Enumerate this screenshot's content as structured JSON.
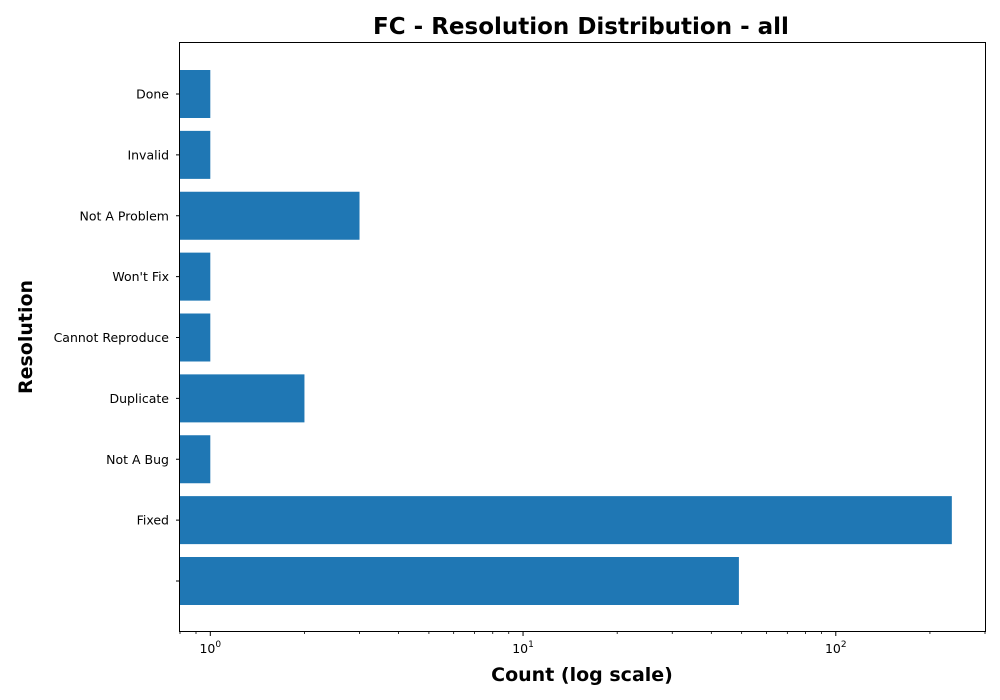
{
  "chart_data": {
    "type": "bar",
    "orientation": "horizontal",
    "title": "FC - Resolution Distribution - all",
    "xlabel": "Count (log scale)",
    "ylabel": "Resolution",
    "x_scale": "log",
    "xlim": [
      0.8,
      300
    ],
    "x_ticks": [
      {
        "value": 1,
        "base": "10",
        "exp": "0"
      },
      {
        "value": 10,
        "base": "10",
        "exp": "1"
      },
      {
        "value": 100,
        "base": "10",
        "exp": "2"
      }
    ],
    "categories": [
      "Done",
      "Invalid",
      "Not A Problem",
      "Won't Fix",
      "Cannot Reproduce",
      "Duplicate",
      "Not A Bug",
      "Fixed",
      ""
    ],
    "values": [
      1,
      1,
      3,
      1,
      1,
      2,
      1,
      235,
      49
    ],
    "bar_color": "#1f77b4",
    "grid": false,
    "legend": false
  }
}
